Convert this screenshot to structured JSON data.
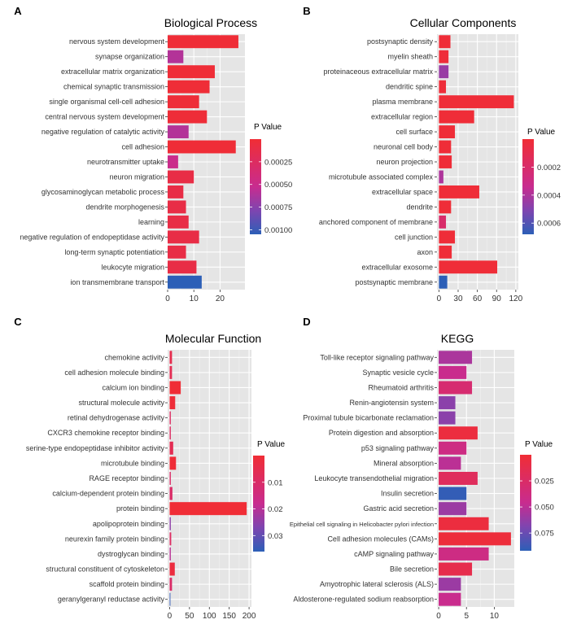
{
  "colors": {
    "low_p": "#f02d35",
    "high_p": "#2c5fb7",
    "panel_bg": "#e5e5e5",
    "grid": "#ffffff"
  },
  "chart_data": [
    {
      "panel": "A",
      "type": "bar",
      "orientation": "horizontal",
      "title": "Biological Process",
      "legend_title": "P Value",
      "legend_placement": "right",
      "grid": true,
      "categories": [
        "nervous system development",
        "synapse organization",
        "extracellular matrix organization",
        "chemical synaptic transmission",
        "single organismal cell-cell adhesion",
        "central nervous system development",
        "negative regulation of catalytic activity",
        "cell adhesion",
        "neurotransmitter uptake",
        "neuron migration",
        "glycosaminoglycan metabolic process",
        "dendrite morphogenesis",
        "learning",
        "negative regulation of endopeptidase activity",
        "long-term synaptic potentiation",
        "leukocyte migration",
        "ion transmembrane transport"
      ],
      "values": [
        27,
        6,
        18,
        16,
        12,
        15,
        8,
        26,
        4,
        10,
        6,
        7,
        8,
        12,
        7,
        11,
        13
      ],
      "pvalues": [
        1e-05,
        0.0006,
        1e-05,
        1e-05,
        2e-05,
        2e-05,
        0.0006,
        1e-05,
        0.0005,
        0.0001,
        0.0001,
        0.0001,
        0.0001,
        0.0001,
        0.0001,
        0.0001,
        0.00105
      ],
      "xlim": [
        0,
        29.5
      ],
      "xticks": [
        0,
        10,
        20
      ],
      "p_range": [
        0.0,
        0.00105
      ],
      "legend_ticks": [
        0.00025,
        0.0005,
        0.00075,
        0.001
      ],
      "legend_tick_labels": [
        "0.00025",
        "0.00050",
        "0.00075",
        "0.00100"
      ]
    },
    {
      "panel": "B",
      "type": "bar",
      "orientation": "horizontal",
      "title": "Cellular Components",
      "legend_title": "P Value",
      "legend_placement": "right",
      "grid": true,
      "categories": [
        "postsynaptic density",
        "myelin sheath",
        "proteinaceous extracellular matrix",
        "dendritic spine",
        "plasma membrane",
        "extracellular region",
        "cell surface",
        "neuronal cell body",
        "neuron projection",
        "microtubule associated complex",
        "extracellular space",
        "dendrite",
        "anchored component of membrane",
        "cell junction",
        "axon",
        "extracellular exosome",
        "postsynaptic membrane"
      ],
      "values": [
        18,
        15,
        15,
        11,
        117,
        55,
        25,
        19,
        20,
        7,
        63,
        19,
        11,
        25,
        20,
        91,
        13
      ],
      "pvalues": [
        1e-05,
        2e-05,
        0.00045,
        2e-05,
        1e-05,
        1e-05,
        1e-05,
        1e-05,
        1e-05,
        0.0004,
        1e-05,
        1e-05,
        0.0002,
        1e-05,
        1e-05,
        1e-05,
        0.00068
      ],
      "xlim": [
        -3,
        124
      ],
      "xticks": [
        0,
        30,
        60,
        90,
        120
      ],
      "p_range": [
        0.0,
        0.00068
      ],
      "legend_ticks": [
        0.0002,
        0.0004,
        0.0006
      ],
      "legend_tick_labels": [
        "0.0002",
        "0.0004",
        "0.0006"
      ]
    },
    {
      "panel": "C",
      "type": "bar",
      "orientation": "horizontal",
      "title": "Molecular Function",
      "legend_title": "P Value",
      "legend_placement": "right",
      "grid": true,
      "categories": [
        "chemokine activity",
        "cell adhesion molecule binding",
        "calcium ion binding",
        "structural molecule activity",
        "retinal dehydrogenase activity",
        "CXCR3 chemokine receptor binding",
        "serine-type endopeptidase inhibitor activity",
        "microtubule binding",
        "RAGE receptor binding",
        "calcium-dependent protein binding",
        "protein binding",
        "apolipoprotein binding",
        "neurexin family protein binding",
        "dystroglycan binding",
        "structural constituent of cytoskeleton",
        "scaffold protein binding",
        "geranylgeranyl reductase activity"
      ],
      "values": [
        6,
        6,
        28,
        14,
        3,
        3,
        9,
        16,
        3,
        7,
        194,
        3,
        4,
        3,
        13,
        6,
        2
      ],
      "pvalues": [
        0.005,
        0.006,
        0.0001,
        0.0008,
        0.009,
        0.009,
        0.006,
        0.0005,
        0.01,
        0.01,
        0.0001,
        0.025,
        0.009,
        0.02,
        0.002,
        0.01,
        0.035
      ],
      "xlim": [
        -5,
        206
      ],
      "xticks": [
        0,
        50,
        100,
        150,
        200
      ],
      "p_range": [
        0.0,
        0.036
      ],
      "legend_ticks": [
        0.01,
        0.02,
        0.03
      ],
      "legend_tick_labels": [
        "0.01",
        "0.02",
        "0.03"
      ]
    },
    {
      "panel": "D",
      "type": "bar",
      "orientation": "horizontal",
      "title": "KEGG",
      "legend_title": "P Value",
      "legend_placement": "right",
      "grid": true,
      "categories": [
        "Toll-like receptor signaling pathway",
        "Synaptic vesicle cycle",
        "Rheumatoid arthritis",
        "Renin-angiotensin system",
        "Proximal tubule bicarbonate reclamation",
        "Protein digestion and absorption",
        "p53 signaling pathway",
        "Mineral absorption",
        "Leukocyte transendothelial migration",
        "Insulin secretion",
        "Gastric acid secretion",
        "Epithelial cell signaling in Helicobacter pylori infection",
        "Cell adhesion molecules (CAMs)",
        "cAMP signaling pathway",
        "Bile secretion",
        "Amyotrophic lateral sclerosis (ALS)",
        "Aldosterone-regulated sodium reabsorption"
      ],
      "values": [
        6,
        5,
        6,
        3,
        3,
        7,
        5,
        4,
        7,
        5,
        5,
        9,
        13,
        9,
        6,
        4,
        4
      ],
      "pvalues": [
        0.055,
        0.045,
        0.03,
        0.065,
        0.065,
        0.005,
        0.04,
        0.05,
        0.02,
        0.09,
        0.06,
        0.005,
        0.003,
        0.04,
        0.012,
        0.06,
        0.045
      ],
      "xlim": [
        -0.3,
        13.6
      ],
      "xticks": [
        0,
        5,
        10
      ],
      "p_range": [
        0.0,
        0.092
      ],
      "legend_ticks": [
        0.025,
        0.05,
        0.075
      ],
      "legend_tick_labels": [
        "0.025",
        "0.050",
        "0.075"
      ]
    }
  ]
}
